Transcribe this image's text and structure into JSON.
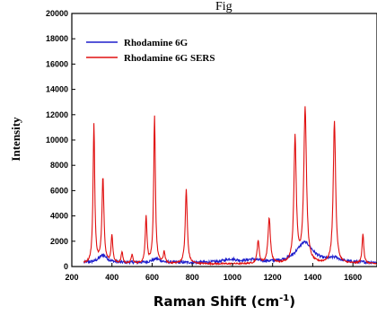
{
  "top_fragment": "Fig",
  "chart_data": {
    "type": "line",
    "title": "",
    "xlabel_main": "Raman Shift (cm",
    "xlabel_sup": "-1",
    "xlabel_close": ")",
    "ylabel": "Intensity",
    "xlim": [
      200,
      1720
    ],
    "ylim": [
      0,
      20000
    ],
    "xticks": [
      200,
      400,
      600,
      800,
      1000,
      1200,
      1400,
      1600
    ],
    "yticks": [
      0,
      2000,
      4000,
      6000,
      8000,
      10000,
      12000,
      14000,
      16000,
      18000,
      20000
    ],
    "legend_position": "top-left",
    "grid": false,
    "series": [
      {
        "name": "Rhodamine 6G",
        "color": "#1f1fcc",
        "baseline": 300,
        "noise": 220,
        "x_start": 260,
        "peaks": [
          {
            "x": 355,
            "height": 600,
            "width": 25
          },
          {
            "x": 620,
            "height": 300,
            "width": 25
          },
          {
            "x": 990,
            "height": 250,
            "width": 40
          },
          {
            "x": 1100,
            "height": 200,
            "width": 40
          },
          {
            "x": 1360,
            "height": 1600,
            "width": 50
          },
          {
            "x": 1510,
            "height": 300,
            "width": 30
          }
        ]
      },
      {
        "name": "Rhodamine 6G SERS",
        "color": "#e01010",
        "baseline": 200,
        "noise": 120,
        "x_start": 260,
        "peaks": [
          {
            "x": 310,
            "height": 11000,
            "width": 5
          },
          {
            "x": 355,
            "height": 6800,
            "width": 6
          },
          {
            "x": 400,
            "height": 2200,
            "width": 5
          },
          {
            "x": 450,
            "height": 900,
            "width": 5
          },
          {
            "x": 500,
            "height": 700,
            "width": 5
          },
          {
            "x": 570,
            "height": 3700,
            "width": 5
          },
          {
            "x": 612,
            "height": 11700,
            "width": 5
          },
          {
            "x": 660,
            "height": 900,
            "width": 5
          },
          {
            "x": 770,
            "height": 5900,
            "width": 6
          },
          {
            "x": 1128,
            "height": 1800,
            "width": 6
          },
          {
            "x": 1183,
            "height": 3600,
            "width": 7
          },
          {
            "x": 1312,
            "height": 9900,
            "width": 7
          },
          {
            "x": 1362,
            "height": 12200,
            "width": 8
          },
          {
            "x": 1508,
            "height": 11300,
            "width": 7
          },
          {
            "x": 1650,
            "height": 2400,
            "width": 5
          }
        ]
      }
    ]
  }
}
